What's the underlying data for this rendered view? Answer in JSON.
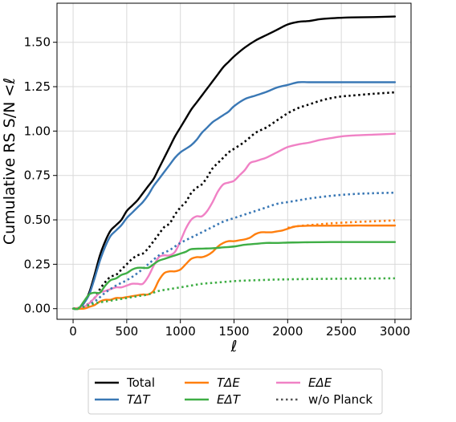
{
  "chart_data": {
    "type": "line",
    "xlabel": "ℓ",
    "ylabel": "Cumulative RS S/N  <ℓ",
    "xlim": [
      -150,
      3150
    ],
    "ylim": [
      -0.06,
      1.72
    ],
    "xticks": [
      0,
      500,
      1000,
      1500,
      2000,
      2500,
      3000
    ],
    "xtick_labels": [
      "0",
      "500",
      "1000",
      "1500",
      "2000",
      "2500",
      "3000"
    ],
    "yticks": [
      0.0,
      0.25,
      0.5,
      0.75,
      1.0,
      1.25,
      1.5
    ],
    "ytick_labels": [
      "0.00",
      "0.25",
      "0.50",
      "0.75",
      "1.00",
      "1.25",
      "1.50"
    ],
    "grid": true,
    "legend": {
      "placement": "below",
      "columns": 3
    },
    "series": [
      {
        "name": "Total",
        "style": "solid",
        "color": "#000000",
        "x": [
          0,
          50,
          100,
          150,
          200,
          250,
          300,
          350,
          400,
          450,
          500,
          550,
          600,
          650,
          700,
          750,
          800,
          850,
          900,
          950,
          1000,
          1050,
          1100,
          1150,
          1200,
          1250,
          1300,
          1350,
          1400,
          1450,
          1500,
          1600,
          1700,
          1800,
          1900,
          2000,
          2100,
          2200,
          2300,
          2400,
          2500,
          2600,
          2800,
          3000
        ],
        "values": [
          0.0,
          0.0,
          0.03,
          0.09,
          0.19,
          0.3,
          0.38,
          0.44,
          0.47,
          0.5,
          0.55,
          0.58,
          0.61,
          0.65,
          0.69,
          0.73,
          0.79,
          0.85,
          0.91,
          0.97,
          1.02,
          1.07,
          1.12,
          1.16,
          1.2,
          1.24,
          1.28,
          1.32,
          1.36,
          1.39,
          1.42,
          1.47,
          1.51,
          1.54,
          1.57,
          1.6,
          1.615,
          1.62,
          1.63,
          1.635,
          1.638,
          1.64,
          1.642,
          1.645
        ]
      },
      {
        "name": "TΔT",
        "style": "solid",
        "color": "#3a78b5",
        "x": [
          0,
          50,
          100,
          150,
          200,
          250,
          300,
          350,
          400,
          450,
          500,
          550,
          600,
          650,
          700,
          750,
          800,
          850,
          900,
          950,
          1000,
          1050,
          1100,
          1150,
          1200,
          1250,
          1300,
          1350,
          1400,
          1450,
          1500,
          1600,
          1700,
          1800,
          1900,
          2000,
          2100,
          2200,
          2400,
          2600,
          2800,
          3000
        ],
        "values": [
          0.0,
          0.0,
          0.03,
          0.08,
          0.17,
          0.27,
          0.35,
          0.41,
          0.44,
          0.47,
          0.51,
          0.54,
          0.57,
          0.6,
          0.64,
          0.69,
          0.73,
          0.77,
          0.81,
          0.85,
          0.88,
          0.9,
          0.92,
          0.95,
          0.99,
          1.02,
          1.05,
          1.07,
          1.09,
          1.11,
          1.14,
          1.18,
          1.2,
          1.22,
          1.245,
          1.26,
          1.275,
          1.275,
          1.275,
          1.275,
          1.275,
          1.275
        ]
      },
      {
        "name": "w/o Planck Total",
        "style": "dotted",
        "color": "#000000",
        "x": [
          0,
          100,
          200,
          250,
          300,
          350,
          400,
          450,
          500,
          550,
          600,
          650,
          700,
          750,
          800,
          850,
          900,
          950,
          1000,
          1050,
          1100,
          1150,
          1200,
          1250,
          1300,
          1350,
          1400,
          1450,
          1500,
          1600,
          1700,
          1800,
          1900,
          2000,
          2100,
          2200,
          2300,
          2400,
          2500,
          2600,
          2800,
          3000
        ],
        "values": [
          0.0,
          0.01,
          0.06,
          0.11,
          0.15,
          0.18,
          0.19,
          0.22,
          0.25,
          0.28,
          0.3,
          0.31,
          0.34,
          0.38,
          0.42,
          0.46,
          0.48,
          0.53,
          0.57,
          0.6,
          0.65,
          0.68,
          0.7,
          0.74,
          0.79,
          0.82,
          0.85,
          0.88,
          0.9,
          0.94,
          0.99,
          1.02,
          1.06,
          1.1,
          1.13,
          1.15,
          1.17,
          1.185,
          1.195,
          1.2,
          1.21,
          1.218
        ]
      },
      {
        "name": "EΔE",
        "style": "solid",
        "color": "#f081c5",
        "x": [
          0,
          100,
          150,
          200,
          250,
          300,
          350,
          400,
          450,
          500,
          550,
          600,
          650,
          700,
          750,
          800,
          850,
          900,
          950,
          1000,
          1050,
          1100,
          1150,
          1200,
          1250,
          1300,
          1350,
          1400,
          1450,
          1500,
          1550,
          1600,
          1650,
          1700,
          1750,
          1800,
          1900,
          2000,
          2100,
          2200,
          2300,
          2400,
          2500,
          2600,
          2800,
          3000
        ],
        "values": [
          0.0,
          0.01,
          0.03,
          0.06,
          0.09,
          0.1,
          0.11,
          0.12,
          0.12,
          0.13,
          0.14,
          0.14,
          0.14,
          0.18,
          0.24,
          0.29,
          0.3,
          0.3,
          0.32,
          0.38,
          0.45,
          0.5,
          0.52,
          0.52,
          0.55,
          0.6,
          0.66,
          0.7,
          0.71,
          0.72,
          0.75,
          0.78,
          0.82,
          0.83,
          0.84,
          0.85,
          0.88,
          0.91,
          0.925,
          0.935,
          0.95,
          0.96,
          0.97,
          0.975,
          0.98,
          0.985
        ]
      },
      {
        "name": "w/o Planck TΔT",
        "style": "dotted",
        "color": "#3a78b5",
        "x": [
          0,
          100,
          200,
          300,
          400,
          500,
          600,
          700,
          800,
          900,
          1000,
          1100,
          1200,
          1300,
          1400,
          1500,
          1600,
          1700,
          1800,
          1900,
          2000,
          2100,
          2200,
          2400,
          2600,
          2800,
          3000
        ],
        "values": [
          0.0,
          0.01,
          0.04,
          0.09,
          0.13,
          0.16,
          0.2,
          0.25,
          0.3,
          0.33,
          0.37,
          0.4,
          0.43,
          0.46,
          0.49,
          0.51,
          0.53,
          0.55,
          0.57,
          0.59,
          0.6,
          0.61,
          0.62,
          0.635,
          0.645,
          0.65,
          0.653
        ]
      },
      {
        "name": "TΔE",
        "style": "solid",
        "color": "#ff7f0e",
        "x": [
          0,
          100,
          150,
          200,
          250,
          300,
          350,
          400,
          450,
          500,
          550,
          600,
          650,
          700,
          750,
          800,
          850,
          900,
          950,
          1000,
          1050,
          1100,
          1150,
          1200,
          1250,
          1300,
          1350,
          1400,
          1450,
          1500,
          1550,
          1600,
          1650,
          1700,
          1750,
          1800,
          1850,
          1900,
          1950,
          2000,
          2050,
          2100,
          2200,
          2400,
          2600,
          2800,
          3000
        ],
        "values": [
          0.0,
          0.0,
          0.01,
          0.02,
          0.04,
          0.05,
          0.05,
          0.06,
          0.06,
          0.065,
          0.07,
          0.075,
          0.08,
          0.08,
          0.1,
          0.16,
          0.2,
          0.21,
          0.21,
          0.22,
          0.25,
          0.28,
          0.29,
          0.29,
          0.3,
          0.32,
          0.35,
          0.37,
          0.38,
          0.38,
          0.385,
          0.39,
          0.4,
          0.42,
          0.43,
          0.43,
          0.43,
          0.435,
          0.44,
          0.45,
          0.46,
          0.465,
          0.467,
          0.467,
          0.468,
          0.468,
          0.468
        ]
      },
      {
        "name": "EΔT",
        "style": "solid",
        "color": "#3fae45",
        "x": [
          0,
          50,
          100,
          150,
          200,
          250,
          300,
          350,
          400,
          450,
          500,
          550,
          600,
          650,
          700,
          750,
          800,
          850,
          900,
          950,
          1000,
          1050,
          1100,
          1200,
          1300,
          1400,
          1500,
          1600,
          1700,
          1800,
          1900,
          2000,
          2100,
          2200,
          2400,
          2600,
          2800,
          3000
        ],
        "values": [
          0.0,
          0.0,
          0.04,
          0.08,
          0.09,
          0.09,
          0.13,
          0.16,
          0.17,
          0.19,
          0.2,
          0.22,
          0.23,
          0.23,
          0.23,
          0.25,
          0.27,
          0.28,
          0.29,
          0.3,
          0.31,
          0.32,
          0.335,
          0.338,
          0.34,
          0.345,
          0.35,
          0.36,
          0.365,
          0.37,
          0.37,
          0.372,
          0.373,
          0.374,
          0.375,
          0.375,
          0.375,
          0.375
        ]
      },
      {
        "name": "w/o Planck TΔE",
        "style": "dotted",
        "color": "#ff7f0e",
        "x": [
          2000,
          2100,
          2200,
          2300,
          2400,
          2600,
          2800,
          3000
        ],
        "values": [
          0.455,
          0.465,
          0.47,
          0.475,
          0.48,
          0.487,
          0.492,
          0.497
        ]
      },
      {
        "name": "w/o Planck EΔT",
        "style": "dotted",
        "color": "#3fae45",
        "x": [
          0,
          100,
          200,
          300,
          400,
          500,
          600,
          700,
          800,
          900,
          1000,
          1100,
          1200,
          1300,
          1400,
          1500,
          1600,
          1700,
          1800,
          1900,
          2000,
          2200,
          2400,
          2600,
          2800,
          3000
        ],
        "values": [
          0.0,
          0.01,
          0.03,
          0.04,
          0.05,
          0.06,
          0.07,
          0.08,
          0.1,
          0.11,
          0.12,
          0.13,
          0.14,
          0.145,
          0.15,
          0.155,
          0.158,
          0.16,
          0.162,
          0.164,
          0.165,
          0.167,
          0.168,
          0.169,
          0.17,
          0.171
        ]
      }
    ],
    "legend_entries": [
      {
        "label": "Total",
        "style": "solid",
        "color": "#000000"
      },
      {
        "label": "TΔT",
        "style": "solid",
        "color": "#3a78b5"
      },
      {
        "label": "TΔE",
        "style": "solid",
        "color": "#ff7f0e"
      },
      {
        "label": "EΔT",
        "style": "solid",
        "color": "#3fae45"
      },
      {
        "label": "EΔE",
        "style": "solid",
        "color": "#f081c5"
      },
      {
        "label": "w/o Planck",
        "style": "dotted",
        "color": "#555555"
      }
    ]
  }
}
